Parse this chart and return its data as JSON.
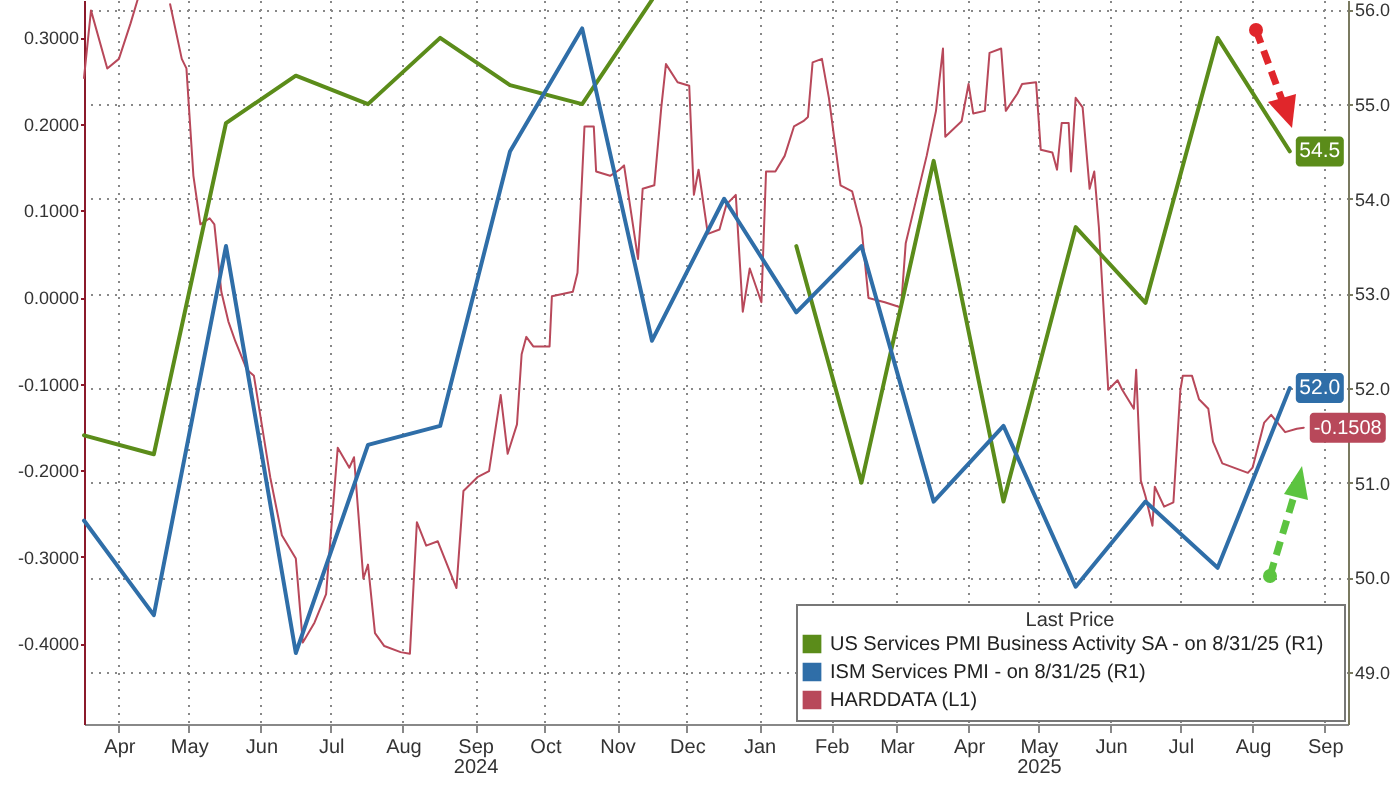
{
  "chart_data": {
    "type": "line",
    "legend_title": "Last Price",
    "legend": "bottom right",
    "grid": true,
    "x": [
      "2024-03-31",
      "2024-04-30",
      "2024-05-31",
      "2024-06-30",
      "2024-07-31",
      "2024-08-31",
      "2024-09-30",
      "2024-10-31",
      "2024-11-30",
      "2024-12-31",
      "2025-01-31",
      "2025-02-28",
      "2025-03-31",
      "2025-04-30",
      "2025-05-31",
      "2025-06-30",
      "2025-07-31",
      "2025-08-31"
    ],
    "xlim": [
      "2024-03-31",
      "2025-09-25"
    ],
    "xticks": [
      {
        "value": "2024-04-15",
        "label": "Apr"
      },
      {
        "value": "2024-05-15",
        "label": "May"
      },
      {
        "value": "2024-06-15",
        "label": "Jun"
      },
      {
        "value": "2024-07-15",
        "label": "Jul"
      },
      {
        "value": "2024-08-15",
        "label": "Aug"
      },
      {
        "value": "2024-09-15",
        "label": "Sep\n2024"
      },
      {
        "value": "2024-10-15",
        "label": "Oct"
      },
      {
        "value": "2024-11-15",
        "label": "Nov"
      },
      {
        "value": "2024-12-15",
        "label": "Dec"
      },
      {
        "value": "2025-01-15",
        "label": "Jan"
      },
      {
        "value": "2025-02-15",
        "label": "Feb"
      },
      {
        "value": "2025-03-15",
        "label": "Mar"
      },
      {
        "value": "2025-04-15",
        "label": "Apr"
      },
      {
        "value": "2025-05-15",
        "label": "May\n2025"
      },
      {
        "value": "2025-06-15",
        "label": "Jun"
      },
      {
        "value": "2025-07-15",
        "label": "Jul"
      },
      {
        "value": "2025-08-15",
        "label": "Aug"
      },
      {
        "value": "2025-09-15",
        "label": "Sep"
      }
    ],
    "ylim": [
      -0.493,
      0.343
    ],
    "yticks": [
      {
        "value": -0.4,
        "label": "-0.4000"
      },
      {
        "value": -0.3,
        "label": "-0.3000"
      },
      {
        "value": -0.2,
        "label": "-0.2000"
      },
      {
        "value": -0.1,
        "label": "-0.1000"
      },
      {
        "value": 0,
        "label": "0.0000"
      },
      {
        "value": 0.1,
        "label": "0.1000"
      },
      {
        "value": 0.2,
        "label": "0.2000"
      },
      {
        "value": 0.3,
        "label": "0.3000"
      }
    ],
    "y2lim": [
      48.45,
      56.1
    ],
    "y2ticks": [
      {
        "value": 49,
        "label": "49.0"
      },
      {
        "value": 50,
        "label": "50.0"
      },
      {
        "value": 51,
        "label": "51.0"
      },
      {
        "value": 52,
        "label": "52.0"
      },
      {
        "value": 53,
        "label": "53.0"
      },
      {
        "value": 54,
        "label": "54.0"
      },
      {
        "value": 55,
        "label": "55.0"
      },
      {
        "value": 56,
        "label": "56.0"
      }
    ],
    "series": [
      {
        "name": "US Services PMI Business Activity SA -  on 8/31/25  (R1)",
        "color": "#5b8c1a",
        "axis": "y2",
        "values": [
          51.5,
          51.3,
          54.8,
          55.3,
          55.0,
          55.7,
          55.2,
          55.0,
          56.1,
          null,
          53.5,
          51.0,
          54.4,
          50.8,
          53.7,
          52.9,
          55.7,
          54.5
        ],
        "value_labels": [
          null,
          null,
          null,
          null,
          null,
          null,
          null,
          null,
          null,
          null,
          null,
          null,
          null,
          null,
          null,
          null,
          null,
          "54.5"
        ]
      },
      {
        "name": "ISM Services PMI -  on 8/31/25  (R1)",
        "color": "#2f6ea8",
        "axis": "y2",
        "values": [
          50.6,
          49.6,
          53.5,
          49.2,
          51.4,
          51.6,
          54.5,
          55.8,
          52.5,
          54.0,
          52.8,
          53.5,
          50.8,
          51.6,
          49.9,
          50.8,
          50.1,
          52.0
        ],
        "value_labels": [
          null,
          null,
          null,
          null,
          null,
          null,
          null,
          null,
          null,
          null,
          null,
          null,
          null,
          null,
          null,
          null,
          null,
          "52.0"
        ]
      },
      {
        "name": "HARDDATA  (L1)",
        "color": "#b8485a",
        "x": [
          "2024-03-31",
          "2024-04-03",
          "2024-04-10",
          "2024-04-15",
          "2024-04-20",
          "2024-04-23",
          "2024-04-30",
          "2024-05-07",
          "2024-05-12",
          "2024-05-14",
          "2024-05-17",
          "2024-05-20",
          "2024-05-24",
          "2024-05-26",
          "2024-05-29",
          "2024-06-01",
          "2024-06-04",
          "2024-06-09",
          "2024-06-12",
          "2024-06-19",
          "2024-06-24",
          "2024-06-30",
          "2024-07-03",
          "2024-07-08",
          "2024-07-13",
          "2024-07-18",
          "2024-07-23",
          "2024-07-25",
          "2024-07-29",
          "2024-07-31",
          "2024-08-03",
          "2024-08-07",
          "2024-08-14",
          "2024-08-18",
          "2024-08-21",
          "2024-08-25",
          "2024-08-30",
          "2024-09-07",
          "2024-09-10",
          "2024-09-16",
          "2024-09-21",
          "2024-09-26",
          "2024-09-29",
          "2024-10-03",
          "2024-10-05",
          "2024-10-07",
          "2024-10-10",
          "2024-10-17",
          "2024-10-18",
          "2024-10-27",
          "2024-10-29",
          "2024-10-31",
          "2024-11-01",
          "2024-11-05",
          "2024-11-06",
          "2024-11-12",
          "2024-11-16",
          "2024-11-18",
          "2024-11-24",
          "2024-11-26",
          "2024-12-01",
          "2024-12-04",
          "2024-12-06",
          "2024-12-11",
          "2024-12-16",
          "2024-12-18",
          "2024-12-20",
          "2024-12-24",
          "2024-12-29",
          "2025-01-01",
          "2025-01-05",
          "2025-01-08",
          "2025-01-11",
          "2025-01-16",
          "2025-01-18",
          "2025-01-22",
          "2025-01-26",
          "2025-01-30",
          "2025-02-03",
          "2025-02-05",
          "2025-02-07",
          "2025-02-11",
          "2025-02-14",
          "2025-02-19",
          "2025-02-24",
          "2025-02-28",
          "2025-03-03",
          "2025-03-10",
          "2025-03-17",
          "2025-03-19",
          "2025-03-23",
          "2025-03-28",
          "2025-04-01",
          "2025-04-04",
          "2025-04-05",
          "2025-04-12",
          "2025-04-15",
          "2025-04-17",
          "2025-04-22",
          "2025-04-24",
          "2025-04-29",
          "2025-05-01",
          "2025-05-06",
          "2025-05-08",
          "2025-05-14",
          "2025-05-16",
          "2025-05-21",
          "2025-05-23",
          "2025-05-25",
          "2025-05-28",
          "2025-05-29",
          "2025-05-31",
          "2025-06-03",
          "2025-06-06",
          "2025-06-08",
          "2025-06-10",
          "2025-06-14",
          "2025-06-18",
          "2025-06-20",
          "2025-06-25",
          "2025-06-26",
          "2025-06-28",
          "2025-06-30",
          "2025-07-03",
          "2025-07-04",
          "2025-07-08",
          "2025-07-12",
          "2025-07-15",
          "2025-07-16",
          "2025-07-20",
          "2025-07-23",
          "2025-07-27",
          "2025-07-29",
          "2025-08-02",
          "2025-08-13",
          "2025-08-15",
          "2025-08-20",
          "2025-08-23",
          "2025-08-29",
          "2025-09-03",
          "2025-09-06"
        ],
        "values": [
          0.253,
          0.331,
          0.264,
          0.275,
          0.316,
          0.343,
          null,
          0.338,
          0.275,
          0.264,
          0.14,
          0.084,
          0.091,
          0.084,
          0.006,
          -0.028,
          -0.051,
          -0.084,
          -0.091,
          -0.208,
          -0.275,
          -0.302,
          -0.399,
          -0.376,
          -0.343,
          -0.174,
          -0.197,
          -0.185,
          -0.325,
          -0.309,
          -0.388,
          -0.403,
          -0.41,
          -0.412,
          -0.26,
          -0.287,
          -0.282,
          -0.336,
          -0.224,
          -0.208,
          -0.201,
          -0.113,
          -0.181,
          -0.147,
          -0.066,
          -0.046,
          -0.057,
          -0.057,
          0.001,
          0.006,
          0.028,
          0.14,
          0.197,
          0.197,
          0.145,
          0.14,
          0.147,
          0.152,
          0.044,
          0.125,
          0.129,
          0.219,
          0.269,
          0.248,
          0.244,
          0.118,
          0.147,
          0.073,
          0.078,
          0.107,
          0.118,
          -0.017,
          0.033,
          -0.006,
          0.145,
          0.145,
          0.163,
          0.197,
          0.203,
          0.208,
          0.271,
          0.275,
          0.23,
          0.129,
          0.122,
          0.08,
          -0.001,
          -0.006,
          -0.012,
          0.062,
          0.107,
          0.163,
          0.215,
          0.287,
          0.185,
          0.203,
          0.246,
          0.212,
          0.215,
          0.282,
          0.287,
          0.215,
          0.235,
          0.246,
          0.248,
          0.17,
          0.167,
          0.147,
          0.201,
          0.201,
          0.145,
          0.23,
          0.219,
          0.125,
          0.145,
          0.08,
          -0.107,
          -0.096,
          -0.107,
          -0.129,
          -0.084,
          -0.212,
          -0.23,
          -0.264,
          -0.219,
          -0.242,
          -0.237,
          -0.107,
          -0.091,
          -0.091,
          -0.118,
          -0.129,
          -0.167,
          -0.192,
          -0.203,
          -0.197,
          -0.145,
          -0.136,
          -0.156,
          -0.152,
          -0.1508
        ],
        "value_labels": [
          null,
          null,
          null,
          null,
          null,
          null,
          null,
          null,
          null,
          null,
          null,
          null,
          null,
          null,
          null,
          null,
          null,
          null,
          null,
          null,
          null,
          null,
          null,
          null,
          null,
          null,
          null,
          null,
          null,
          null,
          null,
          null,
          null,
          null,
          null,
          null,
          null,
          null,
          null,
          null,
          null,
          null,
          null,
          null,
          null,
          null,
          null,
          null,
          null,
          null,
          null,
          null,
          null,
          null,
          null,
          null,
          null,
          null,
          null,
          null,
          null,
          null,
          null,
          null,
          null,
          null,
          null,
          null,
          null,
          null,
          null,
          null,
          null,
          null,
          null,
          null,
          null,
          null,
          null,
          null,
          null,
          null,
          null,
          null,
          null,
          null,
          null,
          null,
          null,
          null,
          null,
          null,
          null,
          null,
          null,
          null,
          null,
          null,
          null,
          null,
          null,
          null,
          null,
          null,
          null,
          null,
          null,
          null,
          null,
          null,
          null,
          null,
          null,
          null,
          null,
          null,
          null,
          null,
          null,
          null,
          null,
          null,
          null,
          null,
          null,
          null,
          null,
          null,
          null,
          null,
          null,
          null,
          null,
          null,
          null,
          null,
          null,
          null,
          null,
          null,
          "-0.1508"
        ]
      }
    ]
  }
}
